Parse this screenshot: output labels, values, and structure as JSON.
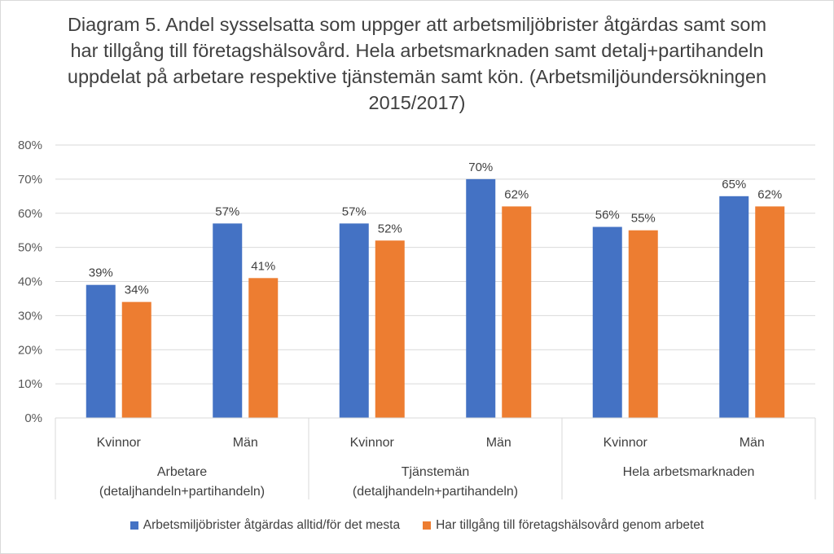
{
  "chart_data": {
    "type": "bar",
    "title": "Diagram 5. Andel sysselsatta som uppger att arbetsmiljöbrister åtgärdas samt som har tillgång till företagshälsovård. Hela arbetsmarknaden samt detalj+partihandeln uppdelat på arbetare respektive tjänstemän samt kön. (Arbetsmiljöundersökningen 2015/2017)",
    "categories": [
      "Kvinnor",
      "Män",
      "Kvinnor",
      "Män",
      "Kvinnor",
      "Män"
    ],
    "groups": [
      {
        "label": "Arbetare",
        "sublabel": "(detaljhandeln+partihandeln)"
      },
      {
        "label": "Tjänstemän",
        "sublabel": "(detaljhandeln+partihandeln)"
      },
      {
        "label": "Hela arbetsmarknaden",
        "sublabel": ""
      }
    ],
    "series": [
      {
        "name": "Arbetsmiljöbrister åtgärdas alltid/för det mesta",
        "color": "#4472c4",
        "values": [
          39,
          57,
          57,
          70,
          56,
          65
        ],
        "labels": [
          "39%",
          "57%",
          "57%",
          "70%",
          "56%",
          "65%"
        ]
      },
      {
        "name": "Har tillgång till företagshälsovård genom arbetet",
        "color": "#ed7d31",
        "values": [
          34,
          41,
          52,
          62,
          55,
          62
        ],
        "labels": [
          "34%",
          "41%",
          "52%",
          "62%",
          "55%",
          "62%"
        ]
      }
    ],
    "yticks": [
      "0%",
      "10%",
      "20%",
      "30%",
      "40%",
      "50%",
      "60%",
      "70%",
      "80%"
    ],
    "ylim": [
      0,
      80
    ],
    "grid": true,
    "legend": "bottom"
  }
}
